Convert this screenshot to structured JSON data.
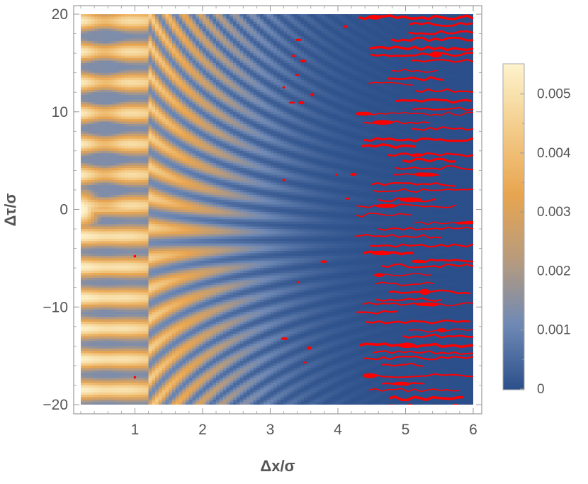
{
  "chart_data": {
    "type": "heatmap",
    "title": "",
    "xlabel": "Δx/σ",
    "ylabel": "Δτ/σ",
    "xlim": [
      0.2,
      6.0
    ],
    "ylim": [
      -20,
      20
    ],
    "x_ticks": [
      1,
      2,
      3,
      4,
      5,
      6
    ],
    "x_tick_labels": [
      "1",
      "2",
      "3",
      "4",
      "5",
      "6"
    ],
    "y_ticks": [
      -20,
      -10,
      0,
      10,
      20
    ],
    "y_tick_labels": [
      "−20",
      "−10",
      "0",
      "10",
      "20"
    ],
    "colorbar": {
      "min": 0,
      "max": 0.0055,
      "ticks": [
        0,
        0.001,
        0.002,
        0.003,
        0.004,
        0.005
      ],
      "tick_labels": [
        "0",
        "0.001",
        "0.002",
        "0.003",
        "0.004",
        "0.005"
      ],
      "colors": [
        "#2b4f8a",
        "#6f89b5",
        "#b89b7d",
        "#e8a550",
        "#f3cc8a",
        "#fdf3cc"
      ]
    },
    "highlight_color": "#ff0000",
    "highlight_region": "red contours over the low-value region, mostly at Δx/σ > 4.3",
    "colorbar_position": "right",
    "grid": false
  }
}
